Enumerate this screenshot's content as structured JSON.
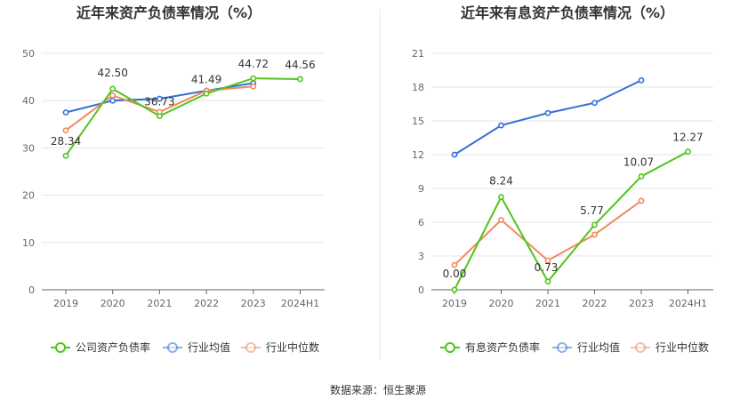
{
  "source": "数据来源：恒生聚源",
  "colors": {
    "company": "#52c41a",
    "avg": "#3370d4",
    "median": "#f08a5d"
  },
  "chart_data": [
    {
      "type": "line",
      "title": "近年来资产负债率情况（%）",
      "categories": [
        "2019",
        "2020",
        "2021",
        "2022",
        "2023",
        "2024H1"
      ],
      "ylim": [
        0,
        50
      ],
      "yticks": [
        0,
        10,
        20,
        30,
        40,
        50
      ],
      "grid": true,
      "legend_position": "bottom",
      "series": [
        {
          "key": "company",
          "name": "公司资产负债率",
          "values": [
            28.34,
            42.5,
            36.73,
            41.49,
            44.72,
            44.56
          ],
          "labels": [
            "28.34",
            "42.50",
            "36.73",
            "41.49",
            "44.72",
            "44.56"
          ]
        },
        {
          "key": "avg",
          "name": "行业均值",
          "values": [
            37.5,
            40.0,
            40.4,
            42.1,
            43.7,
            null
          ]
        },
        {
          "key": "median",
          "name": "行业中位数",
          "values": [
            33.7,
            41.1,
            37.6,
            42.1,
            43.0,
            null
          ]
        }
      ]
    },
    {
      "type": "line",
      "title": "近年来有息资产负债率情况（%）",
      "categories": [
        "2019",
        "2020",
        "2021",
        "2022",
        "2023",
        "2024H1"
      ],
      "ylim": [
        0,
        21
      ],
      "yticks": [
        0,
        3,
        6,
        9,
        12,
        15,
        18,
        21
      ],
      "grid": true,
      "legend_position": "bottom",
      "series": [
        {
          "key": "company",
          "name": "有息资产负债率",
          "values": [
            0.0,
            8.24,
            0.73,
            5.77,
            10.07,
            12.27
          ],
          "labels": [
            "0.00",
            "8.24",
            "0.73",
            "5.77",
            "10.07",
            "12.27"
          ]
        },
        {
          "key": "avg",
          "name": "行业均值",
          "values": [
            12.0,
            14.6,
            15.7,
            16.6,
            18.6,
            null
          ]
        },
        {
          "key": "median",
          "name": "行业中位数",
          "values": [
            2.2,
            6.2,
            2.6,
            4.9,
            7.9,
            null
          ]
        }
      ]
    }
  ]
}
